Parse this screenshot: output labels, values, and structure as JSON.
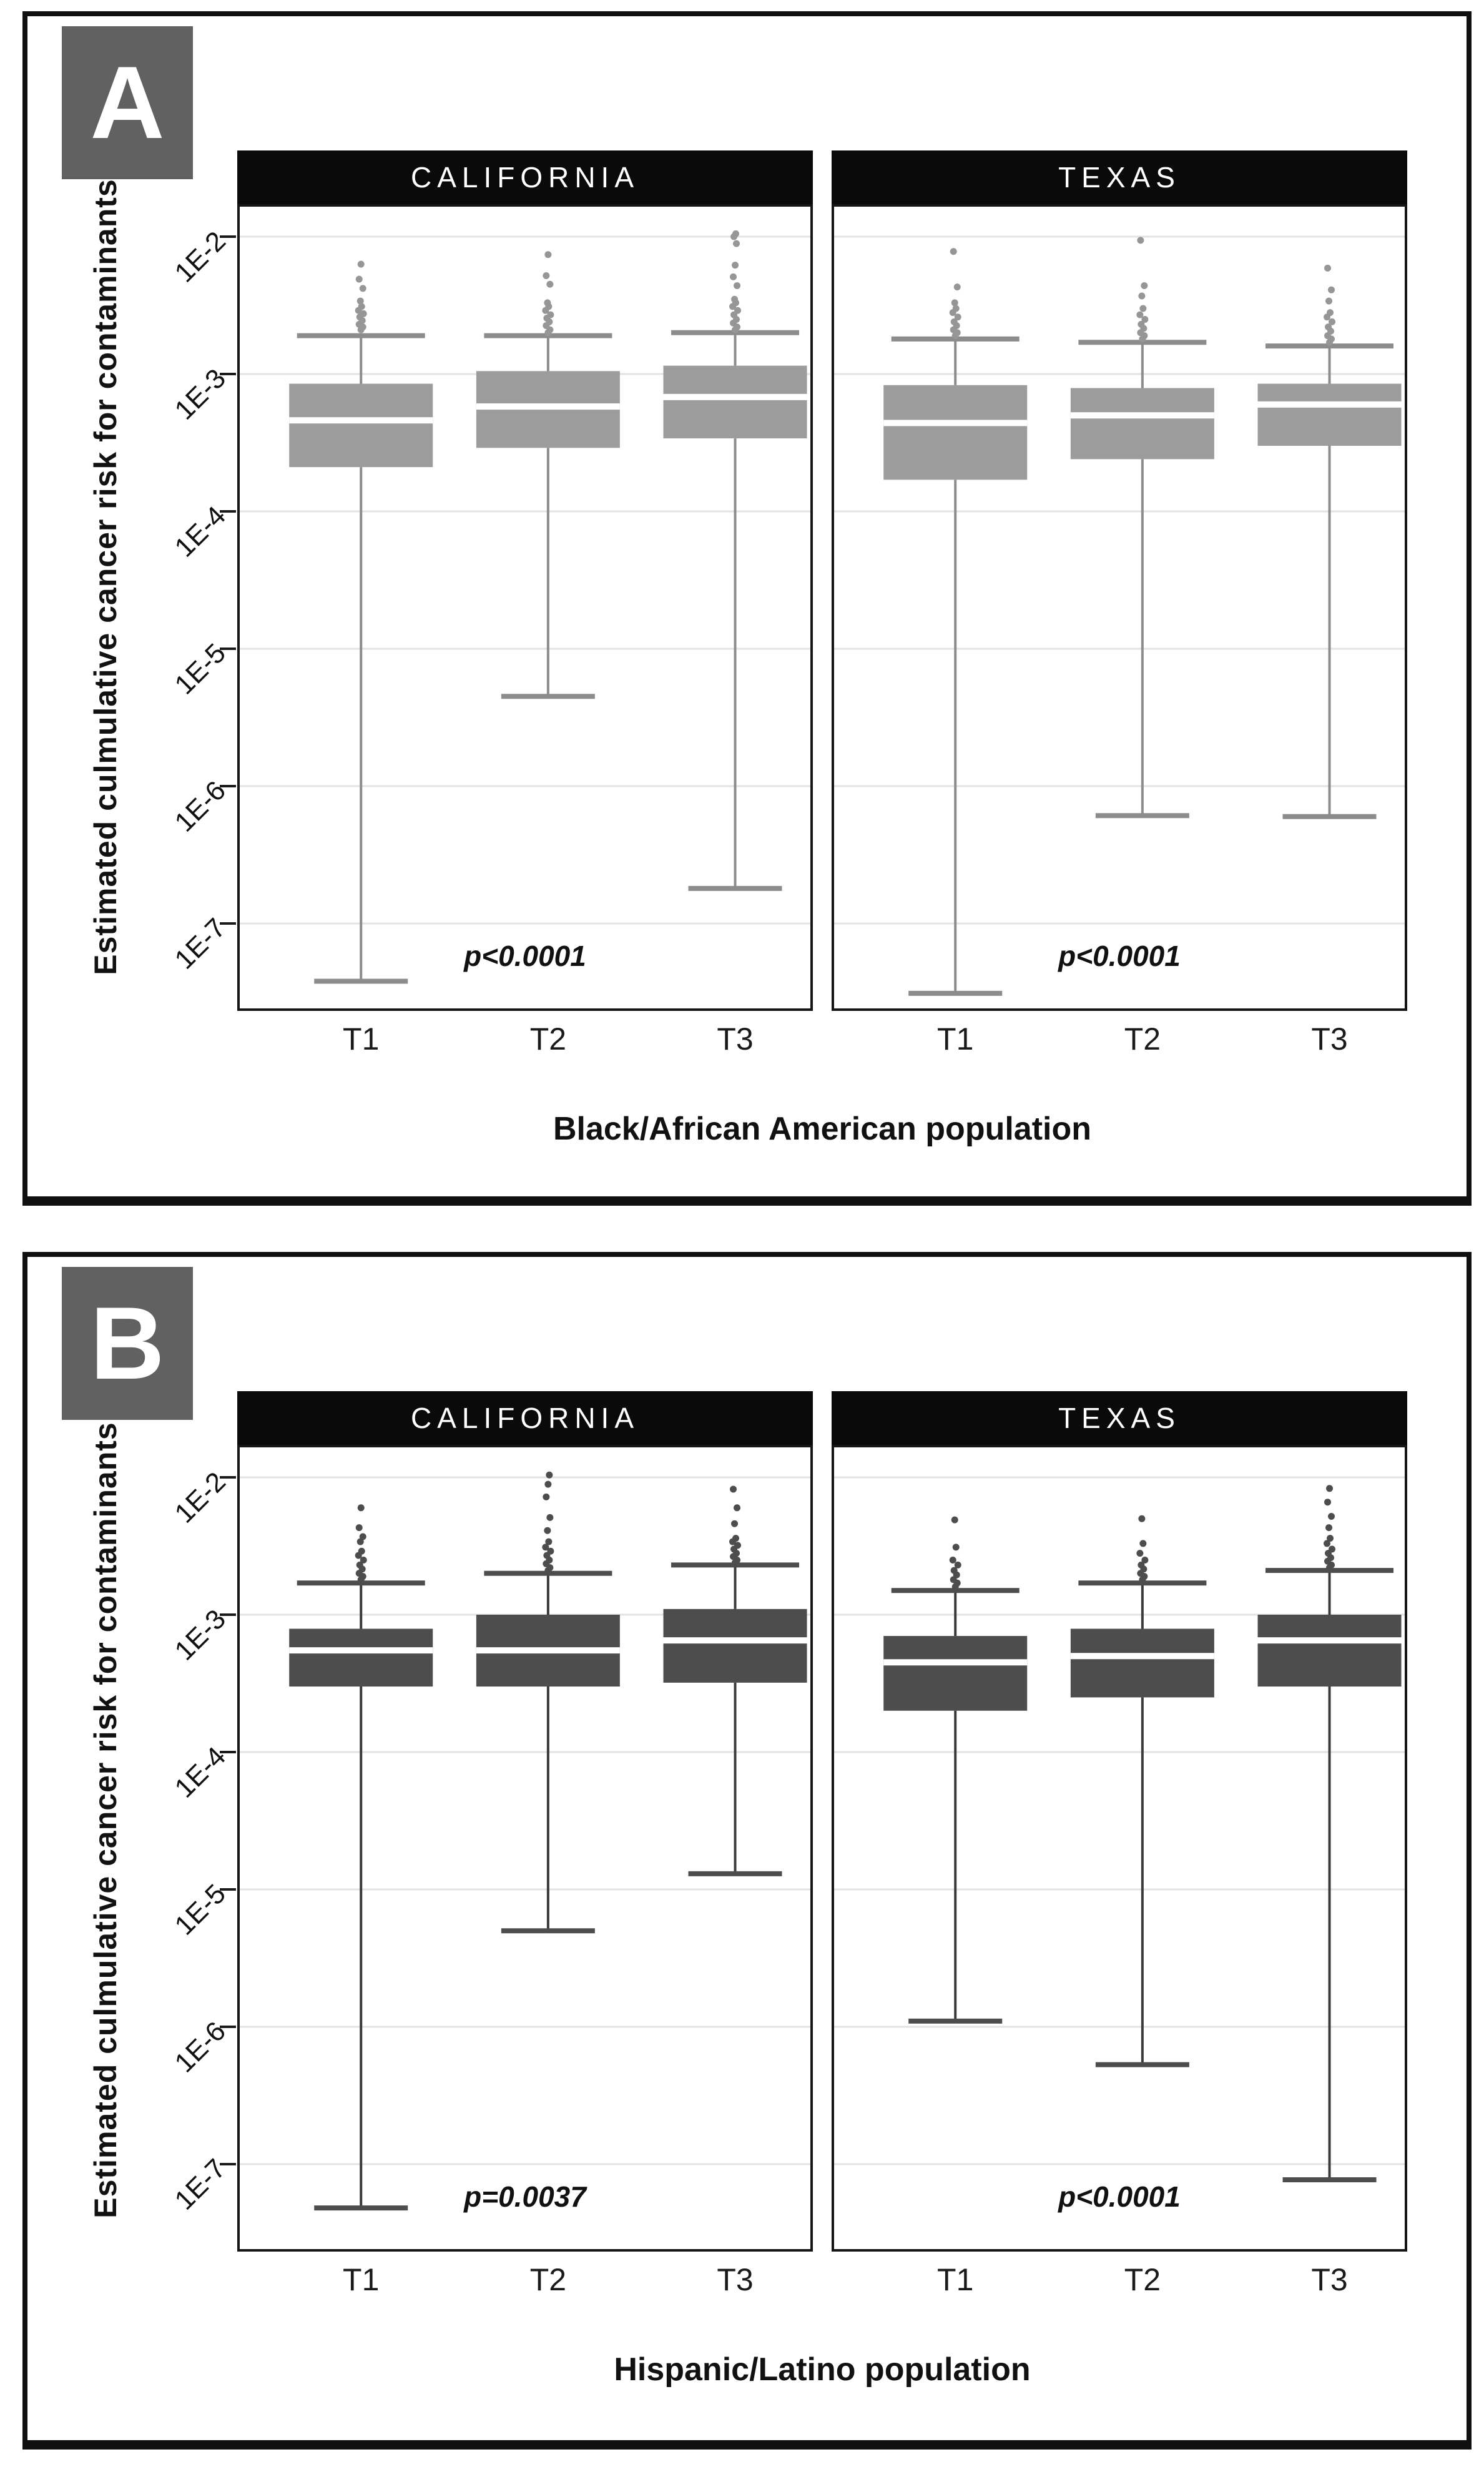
{
  "ui": {
    "background": "#ffffff",
    "figure_border_color": "#101010",
    "panel_label_bg": "#616161",
    "panel_label_color": "#ffffff",
    "strip_bg": "#0a0a0a",
    "strip_text_color": "#ffffff",
    "gridline_color": "#e3e3e3",
    "frame_color": "#161616",
    "median_color": "#ffffff"
  },
  "chart_data": [
    {
      "type": "boxplot",
      "panel": "A",
      "group_label": "Black/African American population",
      "y_label": "Estimated culmulative cancer risk for contaminants",
      "y_scale": "log",
      "y_ticks": [
        "1E-2",
        "1E-3",
        "1E-4",
        "1E-5",
        "1E-6",
        "1E-7"
      ],
      "y_tick_values": [
        0.01,
        0.001,
        0.0001,
        1e-05,
        1e-06,
        1e-07
      ],
      "y_range_approx": [
        3e-08,
        0.018
      ],
      "categories": [
        "T1",
        "T2",
        "T3"
      ],
      "box_fill": "#9c9c9c",
      "whisker_color": "#8c8c8c",
      "cap_color": "#8c8c8c",
      "point_color": "#969696",
      "facets": [
        {
          "name": "CALIFORNIA",
          "p_value": "p<0.0001",
          "boxes": [
            {
              "category": "T1",
              "whisker_low": 3.8e-08,
              "q1": 0.00021,
              "median": 0.00046,
              "q3": 0.00085,
              "whisker_high": 0.0019,
              "outliers": [
                0.0021,
                0.0022,
                0.0023,
                0.00245,
                0.0026,
                0.00275,
                0.0029,
                0.0031,
                0.0034,
                0.0042,
                0.0049,
                0.0063
              ]
            },
            {
              "category": "T2",
              "whisker_low": 4.5e-06,
              "q1": 0.00029,
              "median": 0.00058,
              "q3": 0.00105,
              "whisker_high": 0.0019,
              "outliers": [
                0.002,
                0.0021,
                0.00225,
                0.0024,
                0.00255,
                0.0027,
                0.0029,
                0.0031,
                0.0033,
                0.0045,
                0.0052,
                0.0074
              ]
            },
            {
              "category": "T3",
              "whisker_low": 1.8e-07,
              "q1": 0.00034,
              "median": 0.00068,
              "q3": 0.00115,
              "whisker_high": 0.002,
              "outliers": [
                0.0021,
                0.0022,
                0.00235,
                0.0025,
                0.0027,
                0.0029,
                0.0031,
                0.0033,
                0.0035,
                0.0044,
                0.0051,
                0.0062,
                0.0089,
                0.01,
                0.0105
              ]
            }
          ]
        },
        {
          "name": "TEXAS",
          "p_value": "p<0.0001",
          "boxes": [
            {
              "category": "T1",
              "whisker_low": 3.1e-08,
              "q1": 0.00017,
              "median": 0.00044,
              "q3": 0.00083,
              "whisker_high": 0.0018,
              "outliers": [
                0.0019,
                0.002,
                0.0021,
                0.00225,
                0.0024,
                0.0026,
                0.0028,
                0.003,
                0.0033,
                0.0043,
                0.0078
              ]
            },
            {
              "category": "T2",
              "whisker_low": 6.1e-07,
              "q1": 0.00024,
              "median": 0.0005,
              "q3": 0.00079,
              "whisker_high": 0.0017,
              "outliers": [
                0.0018,
                0.0019,
                0.002,
                0.00215,
                0.0023,
                0.0025,
                0.0027,
                0.003,
                0.0037,
                0.0044,
                0.0094
              ]
            },
            {
              "category": "T3",
              "whisker_low": 6e-07,
              "q1": 0.0003,
              "median": 0.0006,
              "q3": 0.00085,
              "whisker_high": 0.0016,
              "outliers": [
                0.0017,
                0.0018,
                0.0019,
                0.00205,
                0.0022,
                0.0024,
                0.0026,
                0.0028,
                0.0034,
                0.0041,
                0.0059
              ]
            }
          ]
        }
      ]
    },
    {
      "type": "boxplot",
      "panel": "B",
      "group_label": "Hispanic/Latino population",
      "y_label": "Estimated culmulative cancer risk for contaminants",
      "y_scale": "log",
      "y_ticks": [
        "1E-2",
        "1E-3",
        "1E-4",
        "1E-5",
        "1E-6",
        "1E-7"
      ],
      "y_tick_values": [
        0.01,
        0.001,
        0.0001,
        1e-05,
        1e-06,
        1e-07
      ],
      "y_range_approx": [
        3e-08,
        0.018
      ],
      "categories": [
        "T1",
        "T2",
        "T3"
      ],
      "box_fill": "#4d4d4d",
      "whisker_color": "#3a3a3a",
      "cap_color": "#4d4d4d",
      "point_color": "#4d4d4d",
      "facets": [
        {
          "name": "CALIFORNIA",
          "p_value": "p=0.0037",
          "boxes": [
            {
              "category": "T1",
              "whisker_low": 4.8e-08,
              "q1": 0.0003,
              "median": 0.00055,
              "q3": 0.00079,
              "whisker_high": 0.0017,
              "outliers": [
                0.0018,
                0.0019,
                0.002,
                0.00215,
                0.0023,
                0.0025,
                0.0027,
                0.0029,
                0.0034,
                0.0037,
                0.0043,
                0.006
              ]
            },
            {
              "category": "T2",
              "whisker_low": 5e-06,
              "q1": 0.0003,
              "median": 0.00055,
              "q3": 0.001,
              "whisker_high": 0.002,
              "outliers": [
                0.0021,
                0.0022,
                0.00235,
                0.0025,
                0.0027,
                0.0029,
                0.0031,
                0.0034,
                0.0041,
                0.0051,
                0.0072,
                0.0089,
                0.0104
              ]
            },
            {
              "category": "T3",
              "whisker_low": 1.3e-05,
              "q1": 0.00032,
              "median": 0.00065,
              "q3": 0.0011,
              "whisker_high": 0.0023,
              "outliers": [
                0.0024,
                0.0025,
                0.00265,
                0.0028,
                0.003,
                0.0032,
                0.0034,
                0.0036,
                0.0046,
                0.006,
                0.0082
              ]
            }
          ]
        },
        {
          "name": "TEXAS",
          "p_value": "p<0.0001",
          "boxes": [
            {
              "category": "T1",
              "whisker_low": 1.1e-06,
              "q1": 0.0002,
              "median": 0.00045,
              "q3": 0.0007,
              "whisker_high": 0.0015,
              "outliers": [
                0.0016,
                0.0017,
                0.0018,
                0.00195,
                0.0021,
                0.0023,
                0.0025,
                0.0031,
                0.0049
              ]
            },
            {
              "category": "T2",
              "whisker_low": 5.3e-07,
              "q1": 0.00025,
              "median": 0.0005,
              "q3": 0.00079,
              "whisker_high": 0.0017,
              "outliers": [
                0.0018,
                0.0019,
                0.002,
                0.00215,
                0.0023,
                0.0025,
                0.0028,
                0.0033,
                0.005
              ]
            },
            {
              "category": "T3",
              "whisker_low": 7.7e-08,
              "q1": 0.0003,
              "median": 0.00065,
              "q3": 0.001,
              "whisker_high": 0.0021,
              "outliers": [
                0.0022,
                0.0023,
                0.00245,
                0.0026,
                0.0028,
                0.003,
                0.0033,
                0.0036,
                0.0043,
                0.0052,
                0.0066,
                0.0083
              ]
            }
          ]
        }
      ]
    }
  ]
}
